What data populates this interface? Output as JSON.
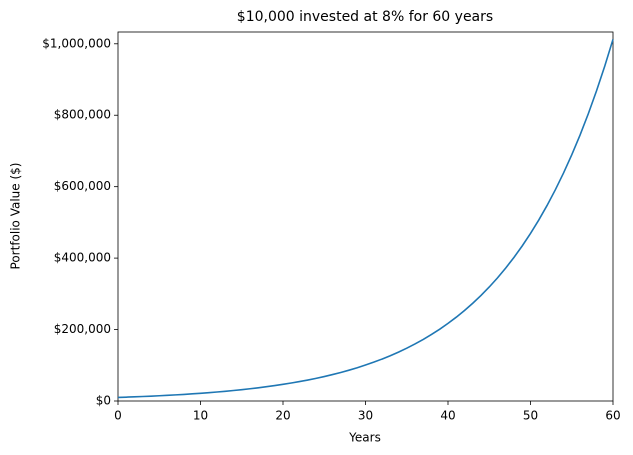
{
  "chart_data": {
    "type": "line",
    "title": "$10,000 invested at 8% for 60 years",
    "xlabel": "Years",
    "ylabel": "Portfolio Value ($)",
    "color": "#1f77b4",
    "x": [
      0,
      1,
      2,
      3,
      4,
      5,
      6,
      7,
      8,
      9,
      10,
      11,
      12,
      13,
      14,
      15,
      16,
      17,
      18,
      19,
      20,
      21,
      22,
      23,
      24,
      25,
      26,
      27,
      28,
      29,
      30,
      31,
      32,
      33,
      34,
      35,
      36,
      37,
      38,
      39,
      40,
      41,
      42,
      43,
      44,
      45,
      46,
      47,
      48,
      49,
      50,
      51,
      52,
      53,
      54,
      55,
      56,
      57,
      58,
      59,
      60
    ],
    "values": [
      10000,
      10800,
      11664,
      12597,
      13605,
      14693,
      15869,
      17138,
      18509,
      19990,
      21589,
      23316,
      25182,
      27196,
      29372,
      31722,
      34259,
      37000,
      39960,
      43157,
      46610,
      50338,
      54365,
      58715,
      63412,
      68485,
      73964,
      79881,
      86271,
      93173,
      100627,
      108677,
      117371,
      126760,
      136901,
      147853,
      159682,
      172456,
      186253,
      201153,
      217245,
      234625,
      253395,
      273666,
      295560,
      319204,
      344741,
      372320,
      402106,
      434274,
      469016,
      506537,
      547060,
      590825,
      638091,
      689139,
      744270,
      803811,
      868116,
      937565,
      1012571
    ],
    "xlim": [
      0,
      60
    ],
    "xticks": [
      0,
      10,
      20,
      30,
      40,
      50,
      60
    ],
    "ylim": [
      0,
      1033000
    ],
    "yticks": [
      {
        "value": 0,
        "label": "$0"
      },
      {
        "value": 200000,
        "label": "$200,000"
      },
      {
        "value": 400000,
        "label": "$400,000"
      },
      {
        "value": 600000,
        "label": "$600,000"
      },
      {
        "value": 800000,
        "label": "$800,000"
      },
      {
        "value": 1000000,
        "label": "$1,000,000"
      }
    ]
  }
}
